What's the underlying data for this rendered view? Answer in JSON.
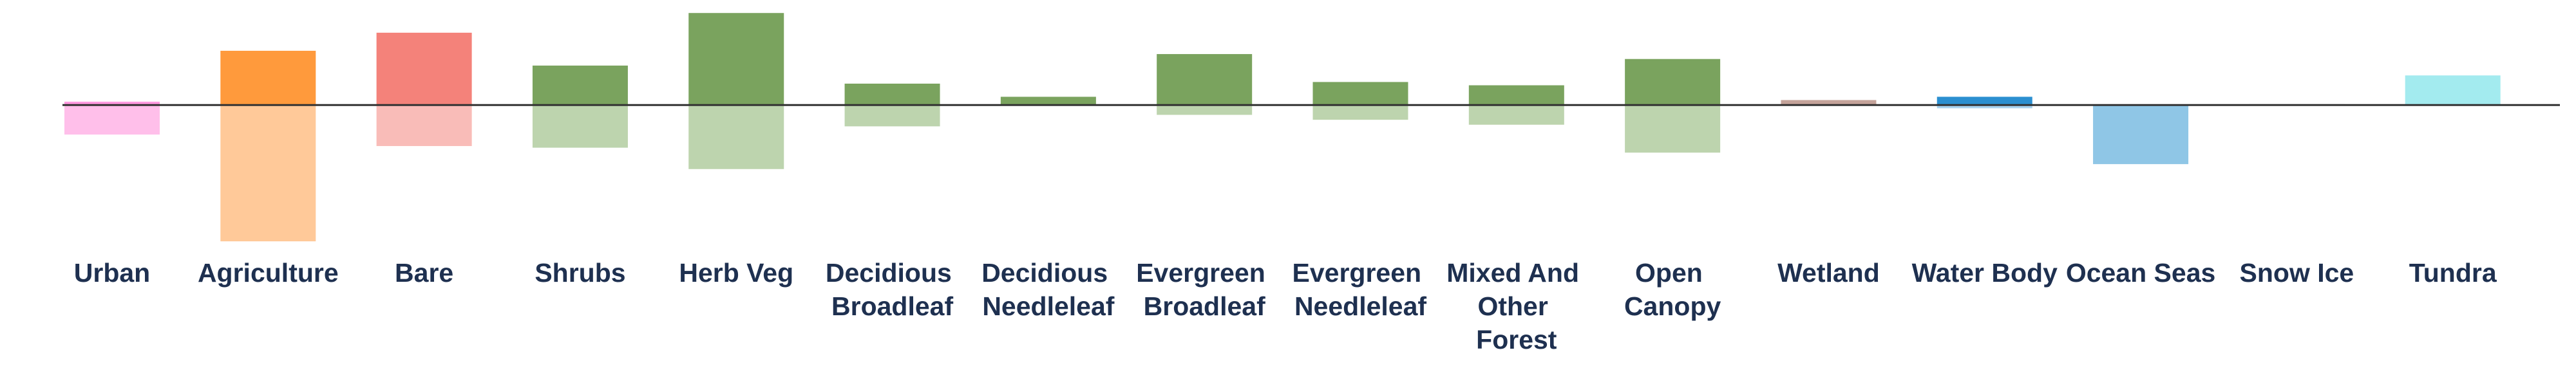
{
  "chart_data": {
    "type": "diverging-bar",
    "categories": [
      "Urban",
      "Agriculture",
      "Bare",
      "Shrubs",
      "Herb Veg",
      "Decidious Broadleaf",
      "Decidious Needleleaf",
      "Evergreen Broadleaf",
      "Evergreen Needleleaf",
      "Mixed And Other Forest",
      "Open Canopy",
      "Wetland",
      "Water Body",
      "Ocean Seas",
      "Snow Ice",
      "Tundra"
    ],
    "series": [
      {
        "values": [
          2,
          33,
          44,
          24,
          56,
          13,
          5,
          31,
          14,
          12,
          28,
          3,
          5,
          0,
          0.5,
          18
        ],
        "colors": [
          "#ff99e0",
          "#ff9a3c",
          "#f4827a",
          "#7aa35e",
          "#7aa35e",
          "#7aa35e",
          "#7aa35e",
          "#7aa35e",
          "#7aa35e",
          "#7aa35e",
          "#7aa35e",
          "#c4a39a",
          "#2b8fd0",
          "#8fc6e6",
          "#999999",
          "#a3ebef"
        ]
      },
      {
        "values": [
          -18,
          -83,
          -25,
          -26,
          -39,
          -13,
          0,
          -6,
          -9,
          -12,
          -29,
          0,
          -2,
          -36,
          0,
          0
        ],
        "colors": [
          "#ffbfea",
          "#ffc999",
          "#f9bcb8",
          "#bdd4ae",
          "#bdd4ae",
          "#bdd4ae",
          "#bdd4ae",
          "#bdd4ae",
          "#bdd4ae",
          "#bdd4ae",
          "#bdd4ae",
          "#ddcbc6",
          "#a8d2ef",
          "#8fc6e6",
          "#cccccc",
          "#d1f5f7"
        ]
      }
    ],
    "ylim": [
      -90,
      60
    ]
  }
}
